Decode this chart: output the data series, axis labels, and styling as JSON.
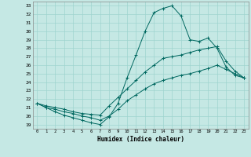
{
  "xlabel": "Humidex (Indice chaleur)",
  "xlim": [
    -0.5,
    23.5
  ],
  "ylim": [
    18.5,
    33.5
  ],
  "xticks": [
    0,
    1,
    2,
    3,
    4,
    5,
    6,
    7,
    8,
    9,
    10,
    11,
    12,
    13,
    14,
    15,
    16,
    17,
    18,
    19,
    20,
    21,
    22,
    23
  ],
  "yticks": [
    19,
    20,
    21,
    22,
    23,
    24,
    25,
    26,
    27,
    28,
    29,
    30,
    31,
    32,
    33
  ],
  "bg_color": "#c5e8e4",
  "line_color": "#006860",
  "grid_color": "#9fd4cf",
  "curve_max_x": [
    0,
    1,
    2,
    3,
    4,
    5,
    6,
    7,
    8,
    9,
    10,
    11,
    12,
    13,
    14,
    15,
    16,
    17,
    18,
    19,
    20,
    21,
    22,
    23
  ],
  "curve_max_y": [
    21.5,
    21.0,
    20.5,
    20.1,
    19.8,
    19.5,
    19.2,
    19.0,
    19.9,
    21.5,
    24.5,
    27.2,
    30.0,
    32.2,
    32.7,
    33.0,
    31.8,
    29.0,
    28.8,
    29.2,
    28.0,
    25.8,
    24.8,
    24.5
  ],
  "curve_mean_x": [
    0,
    1,
    2,
    3,
    4,
    5,
    6,
    7,
    8,
    9,
    10,
    11,
    12,
    13,
    14,
    15,
    16,
    17,
    18,
    19,
    20,
    21,
    22,
    23
  ],
  "curve_mean_y": [
    21.5,
    21.2,
    21.0,
    20.8,
    20.5,
    20.3,
    20.2,
    20.1,
    21.2,
    22.2,
    23.2,
    24.2,
    25.2,
    26.0,
    26.8,
    27.0,
    27.2,
    27.5,
    27.8,
    28.0,
    28.2,
    26.5,
    25.3,
    24.5
  ],
  "curve_min_x": [
    0,
    1,
    2,
    3,
    4,
    5,
    6,
    7,
    8,
    9,
    10,
    11,
    12,
    13,
    14,
    15,
    16,
    17,
    18,
    19,
    20,
    21,
    22,
    23
  ],
  "curve_min_y": [
    21.5,
    21.0,
    20.8,
    20.5,
    20.3,
    20.0,
    19.8,
    19.5,
    20.0,
    20.8,
    21.8,
    22.5,
    23.2,
    23.8,
    24.2,
    24.5,
    24.8,
    25.0,
    25.3,
    25.6,
    26.0,
    25.5,
    25.0,
    24.5
  ]
}
